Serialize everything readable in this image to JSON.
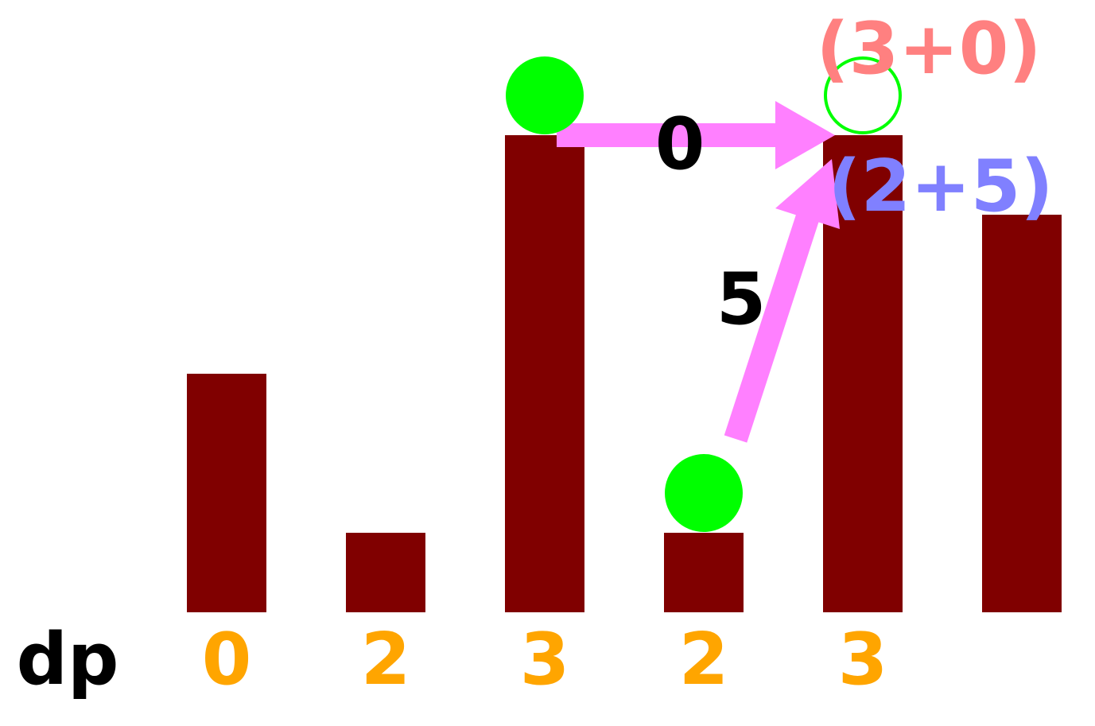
{
  "colors": {
    "bar": "#800000",
    "ball": "#00ff00",
    "arrow": "#ff80ff",
    "dp_value": "#ffa500",
    "dp_label": "#000000",
    "cost_label": "#000000",
    "from_prev_expr": "#ff8080",
    "from_prev2_expr": "#8080ff"
  },
  "bar_heights": [
    3,
    1,
    6,
    1,
    6,
    5
  ],
  "dp_label": "dp",
  "dp_values": [
    "0",
    "2",
    "3",
    "2",
    "3"
  ],
  "arrows": {
    "horizontal_cost": "0",
    "diagonal_cost": "5"
  },
  "expressions": {
    "from_prev": "(3+0)",
    "from_prev2": "(2+5)"
  },
  "balls": {
    "filled_positions": [
      3,
      4
    ],
    "target_position": 5
  }
}
